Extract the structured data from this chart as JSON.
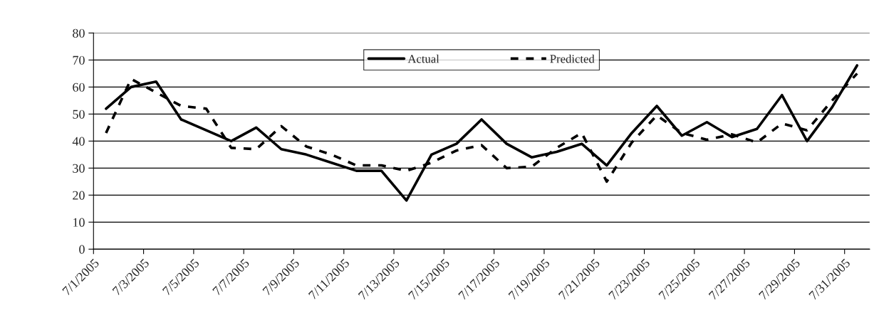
{
  "chart_data": {
    "type": "line",
    "x": [
      "2005-07-01T12:00",
      "2005-07-02T12:00",
      "2005-07-03T12:00",
      "2005-07-04T12:00",
      "2005-07-05T12:00",
      "2005-07-06T12:00",
      "2005-07-07T12:00",
      "2005-07-08T12:00",
      "2005-07-09T12:00",
      "2005-07-10T12:00",
      "2005-07-11T12:00",
      "2005-07-12T12:00",
      "2005-07-13T12:00",
      "2005-07-14T12:00",
      "2005-07-15T12:00",
      "2005-07-16T12:00",
      "2005-07-17T12:00",
      "2005-07-18T12:00",
      "2005-07-19T12:00",
      "2005-07-20T12:00",
      "2005-07-21T12:00",
      "2005-07-22T12:00",
      "2005-07-23T12:00",
      "2005-07-24T12:00",
      "2005-07-25T12:00",
      "2005-07-26T12:00",
      "2005-07-27T12:00",
      "2005-07-28T12:00",
      "2005-07-29T12:00",
      "2005-07-30T12:00",
      "2005-07-31T12:00"
    ],
    "series": [
      {
        "name": "Actual",
        "color": "#000000",
        "line_style": "solid",
        "values": [
          52,
          60,
          62,
          48,
          44,
          40,
          45,
          37,
          35,
          32,
          29,
          29,
          18,
          35,
          39,
          48,
          39,
          34,
          36,
          39,
          31,
          43,
          53,
          42,
          47,
          41.5,
          44.5,
          57,
          40,
          52.5,
          68
        ]
      },
      {
        "name": "Predicted",
        "color": "#000000",
        "line_style": "dashed",
        "values": [
          43,
          63,
          58,
          53,
          52,
          37.5,
          37,
          45.5,
          38,
          35,
          31,
          31,
          29,
          32,
          36.5,
          38.5,
          30,
          30.5,
          37.5,
          43,
          25,
          39.5,
          49.5,
          43,
          40.5,
          42.5,
          39.5,
          46.5,
          44,
          55,
          65
        ]
      }
    ],
    "xlim": [
      "2005-07-01",
      "2005-08-01"
    ],
    "xticks": [
      {
        "value": "2005-07-01",
        "label": "7/1/2005"
      },
      {
        "value": "2005-07-03",
        "label": "7/3/2005"
      },
      {
        "value": "2005-07-05",
        "label": "7/5/2005"
      },
      {
        "value": "2005-07-07",
        "label": "7/7/2005"
      },
      {
        "value": "2005-07-09",
        "label": "7/9/2005"
      },
      {
        "value": "2005-07-11",
        "label": "7/11/2005"
      },
      {
        "value": "2005-07-13",
        "label": "7/13/2005"
      },
      {
        "value": "2005-07-15",
        "label": "7/15/2005"
      },
      {
        "value": "2005-07-17",
        "label": "7/17/2005"
      },
      {
        "value": "2005-07-19",
        "label": "7/19/2005"
      },
      {
        "value": "2005-07-21",
        "label": "7/21/2005"
      },
      {
        "value": "2005-07-23",
        "label": "7/23/2005"
      },
      {
        "value": "2005-07-25",
        "label": "7/25/2005"
      },
      {
        "value": "2005-07-27",
        "label": "7/27/2005"
      },
      {
        "value": "2005-07-29",
        "label": "7/29/2005"
      },
      {
        "value": "2005-07-31",
        "label": "7/31/2005"
      }
    ],
    "ylim": [
      0,
      80
    ],
    "yticks": [
      0,
      10,
      20,
      30,
      40,
      50,
      60,
      70,
      80
    ],
    "grid": "y",
    "legend": "top"
  }
}
